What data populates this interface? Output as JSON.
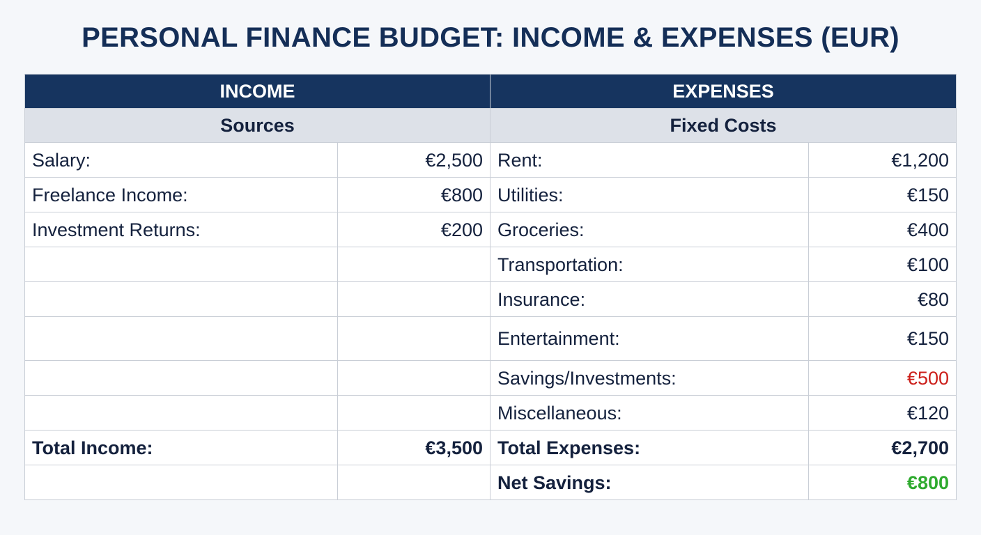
{
  "title": "PERSONAL FINANCE BUDGET: INCOME & EXPENSES (EUR)",
  "income": {
    "header": "INCOME",
    "subheader": "Sources",
    "items": [
      {
        "label": "Salary:",
        "amount": "€2,500"
      },
      {
        "label": "Freelance Income:",
        "amount": "€800"
      },
      {
        "label": "Investment Returns:",
        "amount": "€200"
      }
    ],
    "total_label": "Total Income:",
    "total_amount": "€3,500"
  },
  "expenses": {
    "header": "EXPENSES",
    "subheader": "Fixed Costs",
    "items": [
      {
        "label": "Rent:",
        "amount": "€1,200"
      },
      {
        "label": "Utilities:",
        "amount": "€150"
      },
      {
        "label": "Groceries:",
        "amount": "€400"
      },
      {
        "label": "Transportation:",
        "amount": "€100"
      },
      {
        "label": "Insurance:",
        "amount": "€80"
      },
      {
        "label": "Entertainment:",
        "amount": "€150"
      },
      {
        "label": "Savings/Investments:",
        "amount": "€500",
        "color": "#cc1f1a"
      },
      {
        "label": "Miscellaneous:",
        "amount": "€120"
      }
    ],
    "total_label": "Total Expenses:",
    "total_amount": "€2,700",
    "net_label": "Net Savings:",
    "net_amount": "€800",
    "net_color": "#2eaa2e"
  },
  "colors": {
    "header_bg": "#16345f",
    "subheader_bg": "#dde1e8",
    "title": "#142e57",
    "highlight_red": "#cc1f1a",
    "highlight_green": "#2eaa2e"
  }
}
